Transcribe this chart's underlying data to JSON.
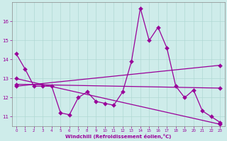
{
  "xlabel": "Windchill (Refroidissement éolien,°C)",
  "x": [
    0,
    1,
    2,
    3,
    4,
    5,
    6,
    7,
    8,
    9,
    10,
    11,
    12,
    13,
    14,
    15,
    16,
    17,
    18,
    19,
    20,
    21,
    22,
    23
  ],
  "line1": [
    14.3,
    13.5,
    12.6,
    12.6,
    12.6,
    11.2,
    11.1,
    12.0,
    12.3,
    11.8,
    11.7,
    11.6,
    12.3,
    13.9,
    16.7,
    15.0,
    15.7,
    14.6,
    12.6,
    12.0,
    12.4,
    11.3,
    11.0,
    10.7
  ],
  "line2_x": [
    0,
    23
  ],
  "line2_y": [
    12.6,
    13.7
  ],
  "line3_x": [
    0,
    23
  ],
  "line3_y": [
    12.7,
    12.5
  ],
  "line4_x": [
    0,
    23
  ],
  "line4_y": [
    13.0,
    10.6
  ],
  "bg_color": "#ceecea",
  "line_color": "#990099",
  "grid_color": "#b0d8d4",
  "ylim": [
    10.5,
    17.0
  ],
  "xlim": [
    -0.5,
    23.5
  ],
  "yticks": [
    11,
    12,
    13,
    14,
    15,
    16
  ],
  "xticks": [
    0,
    1,
    2,
    3,
    4,
    5,
    6,
    7,
    8,
    9,
    10,
    11,
    12,
    13,
    14,
    15,
    16,
    17,
    18,
    19,
    20,
    21,
    22,
    23
  ]
}
